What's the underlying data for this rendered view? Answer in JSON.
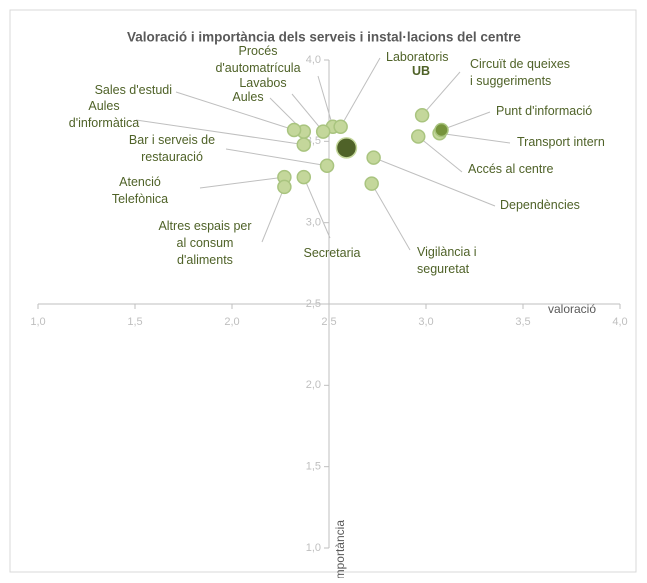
{
  "chart_data": {
    "type": "scatter",
    "title": "Valoració i importància dels serveis i instal·lacions del centre",
    "xlabel": "valoració",
    "ylabel": "importància",
    "labels": [
      [
        "Procés",
        "d'automatrícula"
      ],
      [
        "Lavabos"
      ],
      [
        "Aules"
      ],
      [
        "Laboratoris"
      ],
      [
        "UB"
      ],
      [
        "Sales d'estudi"
      ],
      [
        "Aules",
        "d'informàtica"
      ],
      [
        "Bar i serveis de",
        "restauració"
      ],
      [
        "Atenció",
        "Telefònica"
      ],
      [
        "Altres espais per",
        "al consum",
        "d'aliments"
      ],
      [
        "Secretaria"
      ],
      [
        "Vigilància i",
        "seguretat"
      ],
      [
        "Dependències"
      ],
      [
        "Accés al centre"
      ],
      [
        "Transport intern"
      ],
      [
        "Punt d'informació"
      ],
      [
        "Circuït de queixes",
        "i suggeriments"
      ]
    ],
    "x": [
      2.52,
      2.47,
      2.37,
      2.56,
      2.59,
      2.32,
      2.37,
      2.49,
      2.27,
      2.27,
      2.37,
      2.72,
      2.73,
      2.96,
      3.07,
      3.08,
      2.98
    ],
    "values": [
      3.59,
      3.56,
      3.56,
      3.59,
      3.46,
      3.57,
      3.48,
      3.35,
      3.28,
      3.22,
      3.28,
      3.24,
      3.4,
      3.53,
      3.55,
      3.57,
      3.66
    ],
    "colors": [
      "#c4d79b",
      "#c4d79b",
      "#c4d79b",
      "#c4d79b",
      "#4f6228",
      "#c4d79b",
      "#c4d79b",
      "#c4d79b",
      "#c4d79b",
      "#c4d79b",
      "#c4d79b",
      "#c4d79b",
      "#c4d79b",
      "#c4d79b",
      "#c4d79b",
      "#76933c",
      "#c4d79b"
    ],
    "xlim": [
      1,
      4
    ],
    "ylim": [
      1,
      4
    ],
    "xticks": [
      {
        "value": 1,
        "label": "1,0"
      },
      {
        "value": 1.5,
        "label": "1,5"
      },
      {
        "value": 2,
        "label": "2,0"
      },
      {
        "value": 2.5,
        "label": "2,5"
      },
      {
        "value": 3,
        "label": "3,0"
      },
      {
        "value": 3.5,
        "label": "3,5"
      },
      {
        "value": 4,
        "label": "4,0"
      }
    ],
    "yticks": [
      {
        "value": 1,
        "label": "1,0"
      },
      {
        "value": 1.5,
        "label": "1,5"
      },
      {
        "value": 2,
        "label": "2,0"
      },
      {
        "value": 2.5,
        "label": "2,5"
      },
      {
        "value": 3,
        "label": "3,0"
      },
      {
        "value": 3.5,
        "label": "3,5"
      },
      {
        "value": 4,
        "label": "4,0"
      }
    ],
    "x_axis_crosses": 2.5,
    "y_axis_crosses": 2.5
  }
}
